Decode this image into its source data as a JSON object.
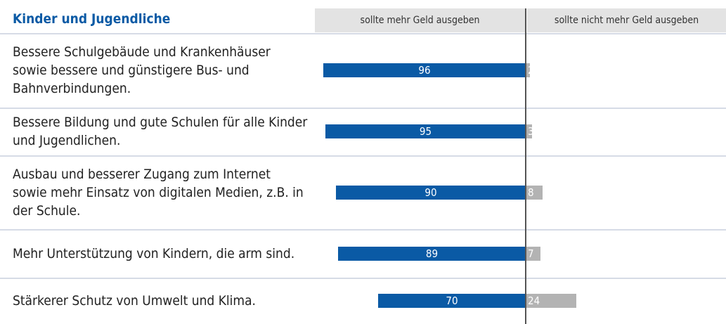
{
  "chart_data": {
    "type": "bar",
    "orientation": "horizontal",
    "layout": "diverging",
    "title": "Kinder und Jugendliche",
    "categories": [
      "Bessere Schulgebäude und Krankenhäuser sowie bessere und günstigere Bus- und Bahnverbindungen.",
      "Bessere Bildung und gute Schulen für alle Kinder und Jugendlichen.",
      "Ausbau und besserer Zugang zum Internet sowie mehr Einsatz von digitalen Medien, z.B. in der Schule.",
      "Mehr Unterstützung von Kindern, die arm sind.",
      "Stärkerer Schutz von Umwelt und Klima."
    ],
    "series": [
      {
        "name": "sollte mehr Geld ausgeben",
        "color": "#0a5aa5",
        "values": [
          96,
          95,
          90,
          89,
          70
        ]
      },
      {
        "name": "sollte nicht mehr Geld ausgeben",
        "color": "#b3b3b3",
        "values": [
          2,
          3,
          8,
          7,
          24
        ]
      }
    ]
  }
}
